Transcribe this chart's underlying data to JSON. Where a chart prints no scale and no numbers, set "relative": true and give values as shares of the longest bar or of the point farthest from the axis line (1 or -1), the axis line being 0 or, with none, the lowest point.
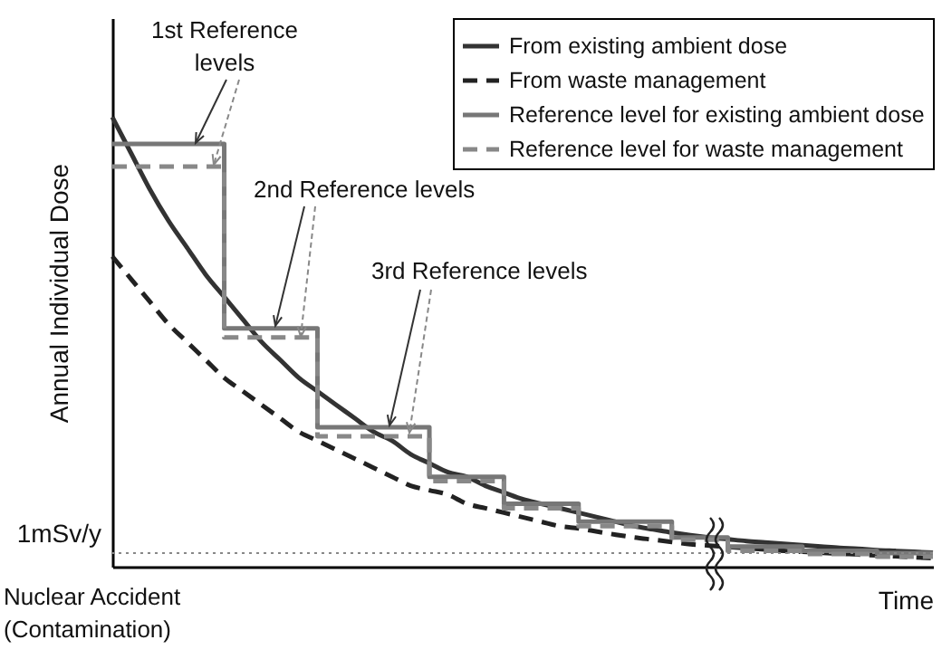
{
  "chart_data": {
    "type": "line",
    "relative": true,
    "xlabel": "Time",
    "ylabel": "Annual Individual Dose",
    "legend": "top right",
    "categories": [
      null,
      null,
      null,
      null,
      null,
      null,
      null,
      null,
      null,
      null,
      null,
      null,
      null,
      null,
      null,
      null,
      null,
      null,
      null,
      null,
      null,
      null,
      null,
      null,
      null,
      null,
      null,
      null,
      null,
      null,
      null,
      null,
      null,
      null,
      null,
      null,
      null,
      null,
      null,
      null,
      null,
      null,
      null,
      null,
      null
    ],
    "series": [
      {
        "name": "From existing ambient dose",
        "type": "line",
        "line_style": "solid",
        "color": "#333333",
        "values": [
          1.0,
          0.92,
          0.84,
          0.77,
          0.71,
          0.65,
          0.6,
          0.55,
          0.5,
          0.46,
          0.42,
          0.39,
          0.36,
          0.33,
          0.3,
          0.28,
          0.25,
          0.23,
          0.21,
          0.2,
          0.18,
          0.165,
          0.15,
          0.14,
          0.13,
          0.12,
          0.11,
          0.1,
          0.09,
          0.083,
          0.076,
          0.07,
          0.065,
          0.061,
          0.057,
          0.054,
          0.051,
          0.048,
          0.045,
          0.042,
          0.04,
          0.037,
          0.035,
          0.033,
          0.031
        ]
      },
      {
        "name": "From waste management",
        "type": "line",
        "line_style": "dashed",
        "color": "#222222",
        "values": [
          0.69,
          0.64,
          0.59,
          0.54,
          0.5,
          0.46,
          0.42,
          0.39,
          0.36,
          0.33,
          0.3,
          0.28,
          0.26,
          0.24,
          0.22,
          0.2,
          0.18,
          0.17,
          0.16,
          0.14,
          0.13,
          0.12,
          0.11,
          0.1,
          0.09,
          0.085,
          0.078,
          0.071,
          0.065,
          0.06,
          0.055,
          0.05,
          0.047,
          0.044,
          0.041,
          0.038,
          0.035,
          0.033,
          0.031,
          0.029,
          0.027,
          0.025,
          0.023,
          0.021,
          0.019
        ]
      },
      {
        "name": "Reference level for existing ambient dose",
        "type": "step",
        "line_style": "solid",
        "color": "#777777",
        "values": [
          0.94,
          0.94,
          0.94,
          0.94,
          0.94,
          0.94,
          0.53,
          0.53,
          0.53,
          0.53,
          0.53,
          0.31,
          0.31,
          0.31,
          0.31,
          0.31,
          0.31,
          0.2,
          0.2,
          0.2,
          0.2,
          0.14,
          0.14,
          0.14,
          0.14,
          0.1,
          0.1,
          0.1,
          0.1,
          0.1,
          0.065,
          0.065,
          0.065,
          0.045,
          0.045,
          0.045,
          0.045,
          0.035,
          0.035,
          0.035,
          0.035,
          0.03,
          0.03,
          0.03,
          0.03
        ]
      },
      {
        "name": "Reference level for waste management",
        "type": "step",
        "line_style": "dashed",
        "color": "#888888",
        "values": [
          0.89,
          0.89,
          0.89,
          0.89,
          0.89,
          0.89,
          0.51,
          0.51,
          0.51,
          0.51,
          0.51,
          0.29,
          0.29,
          0.29,
          0.29,
          0.29,
          0.29,
          0.19,
          0.19,
          0.19,
          0.19,
          0.13,
          0.13,
          0.13,
          0.13,
          0.09,
          0.09,
          0.09,
          0.09,
          0.09,
          0.06,
          0.06,
          0.06,
          0.035,
          0.035,
          0.035,
          0.035,
          0.028,
          0.028,
          0.028,
          0.028,
          0.022,
          0.022,
          0.022,
          0.022
        ]
      }
    ],
    "ref_lines": [
      {
        "axis": "y",
        "value": 0.03,
        "label": "1mSv/y",
        "line_style": "dotted",
        "color": "#888888"
      }
    ],
    "annotations": [
      "1st Reference levels",
      "2nd Reference levels",
      "3rd Reference levels",
      "Nuclear Accident (Contamination)"
    ]
  }
}
